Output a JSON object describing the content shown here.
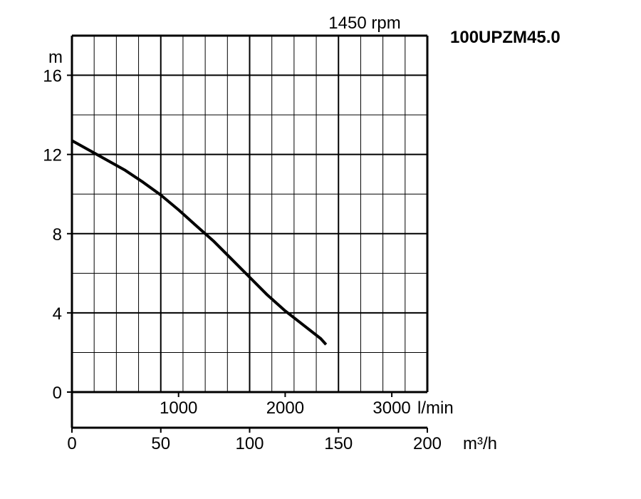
{
  "chart_data": {
    "type": "line",
    "title": "100UPZM45.0",
    "subtitle": "1450 rpm",
    "ylabel": "m",
    "xlabel_primary": "m³/h",
    "xlabel_secondary": "l/min",
    "ylim": [
      0,
      18
    ],
    "xlim": [
      0,
      200
    ],
    "y_ticks": [
      "0",
      "4",
      "8",
      "12",
      "16"
    ],
    "y_tick_values": [
      0,
      4,
      8,
      12,
      16
    ],
    "x_ticks": [
      "0",
      "50",
      "100",
      "150",
      "200"
    ],
    "x_tick_values": [
      0,
      50,
      100,
      150,
      200
    ],
    "x2_ticks": [
      "1000",
      "2000",
      "3000"
    ],
    "x2_tick_values_lpm": [
      1000,
      2000,
      3000
    ],
    "grid": true,
    "series": [
      {
        "x": [
          0,
          10,
          20,
          30,
          40,
          50,
          60,
          70,
          80,
          90,
          100,
          110,
          120,
          130,
          140,
          143
        ],
        "y": [
          12.7,
          12.2,
          11.7,
          11.2,
          10.6,
          9.95,
          9.2,
          8.4,
          7.6,
          6.7,
          5.8,
          4.9,
          4.1,
          3.4,
          2.7,
          2.4
        ],
        "color": "#000000"
      }
    ]
  }
}
